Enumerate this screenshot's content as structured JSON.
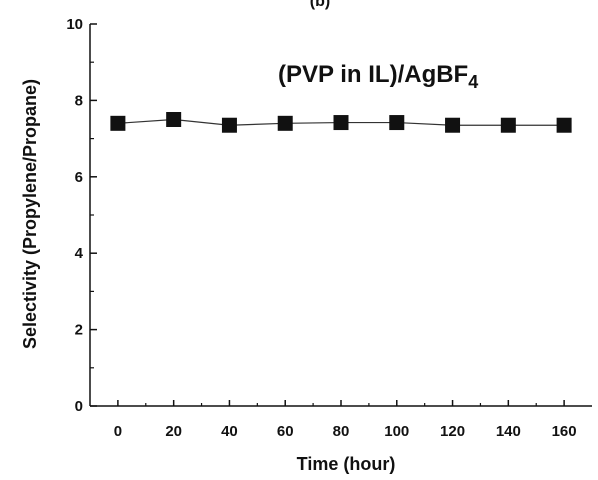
{
  "chart_data": {
    "type": "scatter",
    "title": "(b)",
    "annotation": {
      "main": "(PVP in IL)/AgBF",
      "subscript": "4"
    },
    "xlabel": "Time (hour)",
    "ylabel": "Selectivity (Propylene/Propane)",
    "xlim": [
      -10,
      170
    ],
    "ylim": [
      0,
      10
    ],
    "xticks": [
      0,
      20,
      40,
      60,
      80,
      100,
      120,
      140,
      160
    ],
    "yticks": [
      0,
      2,
      4,
      6,
      8,
      10
    ],
    "grid": false,
    "connect_points": true,
    "marker": "square",
    "colors": {
      "marker": "#111111",
      "line": "#333333",
      "axis": "#111111"
    },
    "series": [
      {
        "x": [
          0,
          20,
          40,
          60,
          80,
          100,
          120,
          140,
          160
        ],
        "y": [
          7.4,
          7.5,
          7.35,
          7.4,
          7.42,
          7.42,
          7.35,
          7.35,
          7.35
        ]
      }
    ]
  }
}
